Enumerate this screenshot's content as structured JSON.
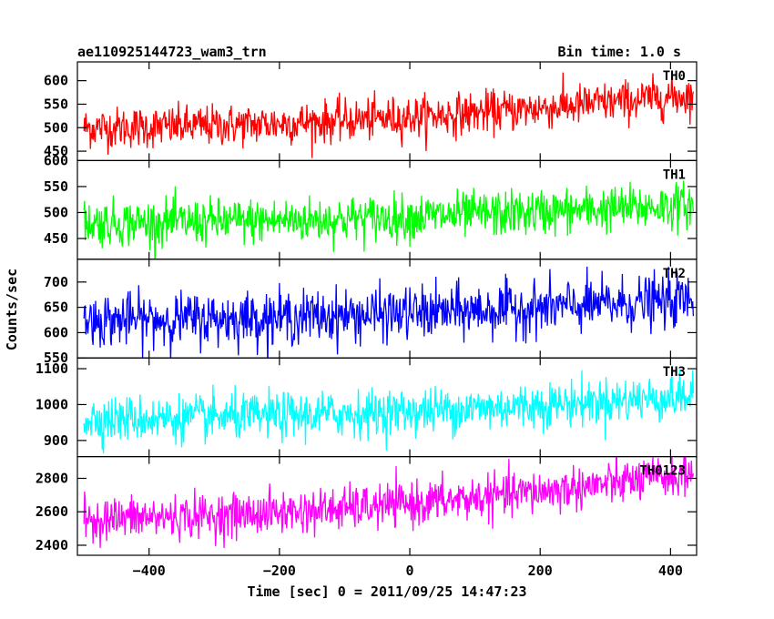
{
  "header": {
    "title": "ae110925144723_wam3_trn",
    "bin_time": "Bin time: 1.0 s"
  },
  "chart_data": {
    "type": "line",
    "xlabel": "Time [sec] 0 = 2011/09/25 14:47:23",
    "ylabel": "Counts/sec",
    "xlim": [
      -510,
      440
    ],
    "x_ticks": [
      -400,
      -200,
      0,
      200,
      400
    ],
    "x_start": -500,
    "x_end": 435,
    "x_step": 1,
    "grid": false,
    "panels": [
      {
        "name": "TH0",
        "color": "#ff0000",
        "ylim": [
          430,
          640
        ],
        "yticks": [
          450,
          500,
          550,
          600
        ],
        "start_mean": 500,
        "end_mean": 570,
        "noise": 22
      },
      {
        "name": "TH1",
        "color": "#00ff00",
        "ylim": [
          410,
          600
        ],
        "yticks": [
          450,
          500,
          550,
          600
        ],
        "start_mean": 480,
        "end_mean": 515,
        "noise": 22
      },
      {
        "name": "TH2",
        "color": "#0000ff",
        "ylim": [
          550,
          745
        ],
        "yticks": [
          550,
          600,
          650,
          700
        ],
        "start_mean": 625,
        "end_mean": 665,
        "noise": 26
      },
      {
        "name": "TH3",
        "color": "#00ffff",
        "ylim": [
          855,
          1130
        ],
        "yticks": [
          900,
          1000,
          1100
        ],
        "start_mean": 960,
        "end_mean": 1025,
        "noise": 32
      },
      {
        "name": "TH0123",
        "color": "#ff00ff",
        "ylim": [
          2340,
          2930
        ],
        "yticks": [
          2400,
          2600,
          2800
        ],
        "start_mean": 2560,
        "end_mean": 2830,
        "noise": 65
      }
    ]
  }
}
